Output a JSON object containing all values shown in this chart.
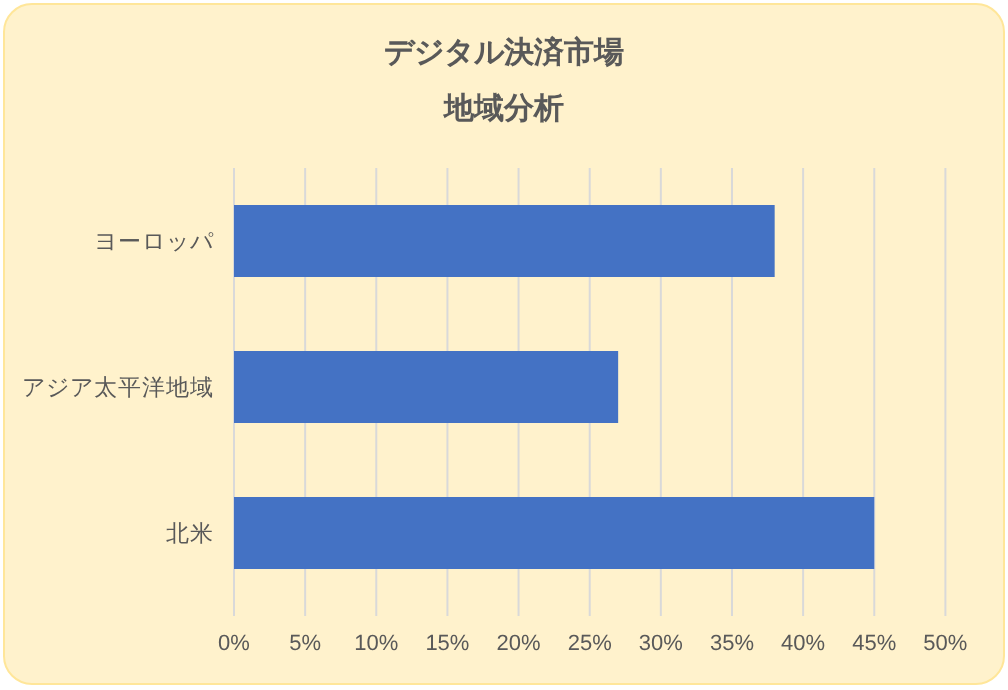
{
  "chart_data": {
    "type": "bar",
    "orientation": "horizontal",
    "title": "デジタル決済市場",
    "subtitle": "地域分析",
    "categories": [
      "ヨーロッパ",
      "アジア太平洋地域",
      "北米"
    ],
    "values": [
      38,
      27,
      45
    ],
    "color": "#4472c4",
    "xlim": [
      0,
      50
    ],
    "xticks": [
      {
        "value": 0,
        "label": "0%"
      },
      {
        "value": 5,
        "label": "5%"
      },
      {
        "value": 10,
        "label": "10%"
      },
      {
        "value": 15,
        "label": "15%"
      },
      {
        "value": 20,
        "label": "20%"
      },
      {
        "value": 25,
        "label": "25%"
      },
      {
        "value": 30,
        "label": "30%"
      },
      {
        "value": 35,
        "label": "35%"
      },
      {
        "value": 40,
        "label": "40%"
      },
      {
        "value": 45,
        "label": "45%"
      },
      {
        "value": 50,
        "label": "50%"
      }
    ],
    "grid": "x"
  }
}
